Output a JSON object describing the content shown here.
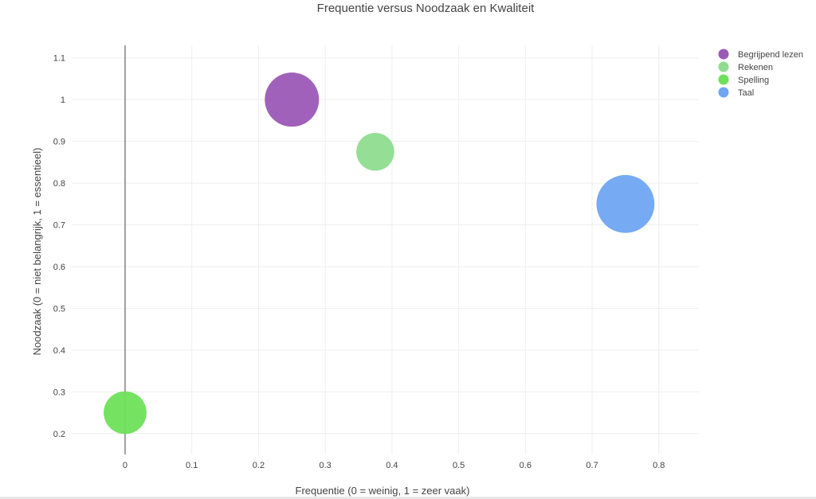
{
  "chart_data": {
    "type": "scatter",
    "title": "Frequentie versus Noodzaak en Kwaliteit",
    "xlabel": "Frequentie (0 = weinig, 1 = zeer vaak)",
    "ylabel": "Noodzaak (0 = niet belangrijk, 1 = essentieel)",
    "xlim": [
      -0.08,
      0.86
    ],
    "ylim": [
      0.15,
      1.13
    ],
    "x_ticks": [
      "0",
      "0.1",
      "0.2",
      "0.3",
      "0.4",
      "0.5",
      "0.6",
      "0.7",
      "0.8"
    ],
    "y_ticks": [
      "0.2",
      "0.3",
      "0.4",
      "0.5",
      "0.6",
      "0.7",
      "0.8",
      "0.9",
      "1",
      "1.1"
    ],
    "grid": true,
    "legend_position": "top-right",
    "series": [
      {
        "name": "Begrijpend lezen",
        "x": 0.25,
        "y": 1.0,
        "size": 1.0,
        "color": "#9b59b6"
      },
      {
        "name": "Rekenen",
        "x": 0.375,
        "y": 0.875,
        "size": 0.7,
        "color": "#8fdc8f"
      },
      {
        "name": "Spelling",
        "x": 0.0,
        "y": 0.25,
        "size": 0.79,
        "color": "#6ee05a"
      },
      {
        "name": "Taal",
        "x": 0.75,
        "y": 0.75,
        "size": 1.07,
        "color": "#6fa5f2"
      }
    ]
  }
}
